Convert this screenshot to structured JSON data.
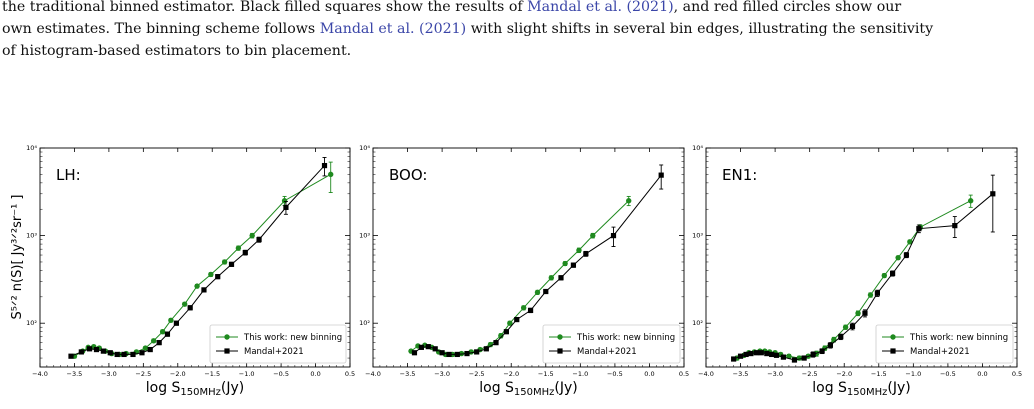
{
  "caption": {
    "line1": "the traditional binned estimator. Black filled squares show the results of ",
    "cite1": "Mandal et al. (2021)",
    "line1b": ", and red filled circles show our",
    "line2": "own estimates. The binning scheme follows ",
    "cite2": "Mandal et al. (2021)",
    "line2b": " with slight shifts in several bin edges, illustrating the sensitivity",
    "line3": "of histogram-based estimators to bin placement."
  },
  "shared_axis": {
    "xlabel": "log S",
    "xlabel_sub": "150MHz",
    "xlabel_unit": "(Jy)",
    "ylabel": "S^{5/2} n(S)[ Jy^{3/2}sr^{-1} ]",
    "xticks": [
      "−4.0",
      "−3.5",
      "−3.0",
      "−2.5",
      "−2.0",
      "−1.5",
      "−1.0",
      "−0.5",
      "0.0",
      "0.5"
    ],
    "yticks": [
      "10²",
      "10³",
      "10⁴"
    ]
  },
  "legend": [
    "This work: new binning",
    "Mandal+2021"
  ],
  "colors": {
    "green": "#1f8a1f",
    "black": "#000000"
  },
  "chart_data": [
    {
      "type": "line",
      "panel_label": "LH:",
      "xlim": [
        -4.0,
        0.5
      ],
      "ylim_log10": [
        1.5,
        4.0
      ],
      "scale_y": "log",
      "series": [
        {
          "name": "This work: new binning",
          "color": "#1f8a1f",
          "marker": "circle",
          "x": [
            -3.5,
            -3.38,
            -3.3,
            -3.22,
            -3.14,
            -3.05,
            -2.96,
            -2.85,
            -2.75,
            -2.6,
            -2.47,
            -2.35,
            -2.22,
            -2.1,
            -1.9,
            -1.72,
            -1.52,
            -1.32,
            -1.12,
            -0.92,
            -0.45,
            0.22
          ],
          "y": [
            42,
            48,
            53,
            54,
            52,
            48,
            45,
            44,
            45,
            47,
            52,
            63,
            80,
            108,
            165,
            265,
            360,
            500,
            720,
            1000,
            2500,
            5000
          ],
          "yerr": [
            2,
            2,
            2,
            2,
            2,
            2,
            2,
            2,
            2,
            2,
            2,
            3,
            4,
            5,
            8,
            12,
            18,
            25,
            40,
            60,
            300,
            1900
          ]
        },
        {
          "name": "Mandal+2021",
          "color": "#000000",
          "marker": "square",
          "x": [
            -3.55,
            -3.4,
            -3.28,
            -3.18,
            -3.08,
            -2.98,
            -2.88,
            -2.78,
            -2.65,
            -2.52,
            -2.4,
            -2.27,
            -2.15,
            -2.02,
            -1.82,
            -1.62,
            -1.42,
            -1.22,
            -1.02,
            -0.82,
            -0.43,
            0.13
          ],
          "y": [
            42,
            47,
            51,
            50,
            48,
            46,
            44,
            44,
            44,
            46,
            50,
            60,
            75,
            100,
            150,
            240,
            340,
            470,
            640,
            900,
            2100,
            6300
          ],
          "yerr": [
            2,
            2,
            2,
            2,
            2,
            2,
            2,
            2,
            2,
            2,
            2,
            3,
            4,
            5,
            8,
            12,
            18,
            25,
            40,
            60,
            350,
            1500
          ]
        }
      ]
    },
    {
      "type": "line",
      "panel_label": "BOO:",
      "xlim": [
        -4.0,
        0.5
      ],
      "ylim_log10": [
        1.5,
        4.0
      ],
      "scale_y": "log",
      "series": [
        {
          "name": "This work: new binning",
          "color": "#1f8a1f",
          "marker": "circle",
          "x": [
            -3.45,
            -3.35,
            -3.25,
            -3.15,
            -3.05,
            -2.95,
            -2.85,
            -2.72,
            -2.58,
            -2.45,
            -2.3,
            -2.15,
            -2.02,
            -1.82,
            -1.62,
            -1.42,
            -1.22,
            -1.02,
            -0.82,
            -0.3
          ],
          "y": [
            48,
            55,
            56,
            53,
            47,
            44,
            44,
            45,
            47,
            50,
            57,
            72,
            100,
            150,
            225,
            330,
            480,
            680,
            1000,
            2500
          ],
          "yerr": [
            2,
            2,
            2,
            2,
            2,
            2,
            2,
            2,
            2,
            2,
            3,
            4,
            5,
            8,
            12,
            18,
            25,
            40,
            60,
            300
          ]
        },
        {
          "name": "Mandal+2021",
          "color": "#000000",
          "marker": "square",
          "x": [
            -3.4,
            -3.3,
            -3.2,
            -3.1,
            -3.0,
            -2.9,
            -2.78,
            -2.64,
            -2.5,
            -2.36,
            -2.22,
            -2.07,
            -1.92,
            -1.72,
            -1.5,
            -1.28,
            -1.1,
            -0.92,
            -0.52,
            0.17
          ],
          "y": [
            46,
            53,
            54,
            51,
            46,
            44,
            44,
            45,
            47,
            51,
            60,
            80,
            110,
            140,
            230,
            330,
            460,
            620,
            1000,
            4900
          ],
          "yerr": [
            2,
            2,
            2,
            2,
            2,
            2,
            2,
            2,
            2,
            2,
            3,
            4,
            5,
            8,
            12,
            18,
            25,
            40,
            250,
            1500
          ]
        }
      ]
    },
    {
      "type": "line",
      "panel_label": "EN1:",
      "xlim": [
        -4.0,
        0.5
      ],
      "ylim_log10": [
        1.5,
        4.0
      ],
      "scale_y": "log",
      "series": [
        {
          "name": "This work: new binning",
          "color": "#1f8a1f",
          "marker": "circle",
          "x": [
            -3.55,
            -3.45,
            -3.38,
            -3.3,
            -3.22,
            -3.15,
            -3.08,
            -3.0,
            -2.92,
            -2.8,
            -2.65,
            -2.52,
            -2.4,
            -2.28,
            -2.15,
            -1.98,
            -1.8,
            -1.62,
            -1.42,
            -1.22,
            -1.05,
            -0.9,
            -0.17
          ],
          "y": [
            40,
            43,
            46,
            47,
            48,
            48,
            47,
            46,
            44,
            42,
            40,
            42,
            45,
            52,
            65,
            90,
            130,
            210,
            350,
            560,
            850,
            1250,
            2500
          ],
          "yerr": [
            2,
            2,
            2,
            2,
            2,
            2,
            2,
            2,
            2,
            2,
            2,
            2,
            3,
            3,
            4,
            5,
            8,
            12,
            18,
            25,
            40,
            80,
            400
          ]
        },
        {
          "name": "Mandal+2021",
          "color": "#000000",
          "marker": "square",
          "x": [
            -3.6,
            -3.5,
            -3.42,
            -3.35,
            -3.27,
            -3.2,
            -3.12,
            -3.05,
            -2.98,
            -2.88,
            -2.72,
            -2.58,
            -2.45,
            -2.32,
            -2.2,
            -2.05,
            -1.88,
            -1.7,
            -1.52,
            -1.3,
            -1.1,
            -0.92,
            -0.4,
            0.15
          ],
          "y": [
            39,
            42,
            44,
            45,
            46,
            46,
            45,
            44,
            43,
            41,
            38,
            40,
            44,
            48,
            56,
            70,
            92,
            130,
            220,
            370,
            600,
            1200,
            1300,
            3000
          ],
          "yerr": [
            2,
            2,
            2,
            2,
            2,
            2,
            2,
            2,
            2,
            2,
            2,
            2,
            3,
            3,
            4,
            5,
            8,
            12,
            18,
            25,
            40,
            120,
            350,
            1900
          ]
        }
      ]
    }
  ]
}
